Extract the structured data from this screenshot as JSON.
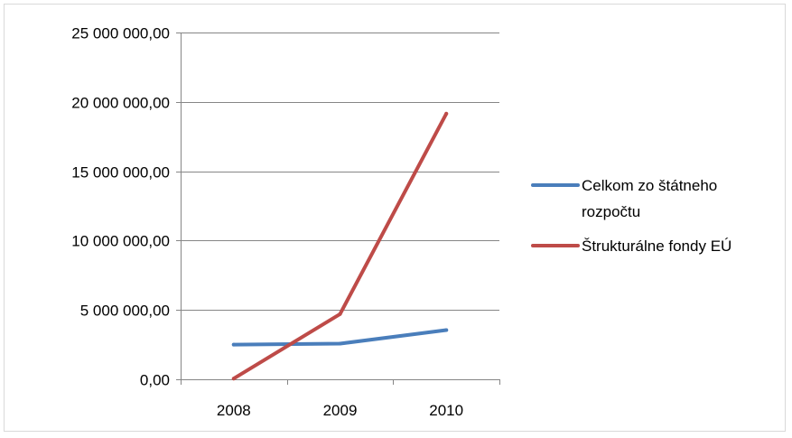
{
  "chart_data": {
    "type": "line",
    "categories": [
      "2008",
      "2009",
      "2010"
    ],
    "series": [
      {
        "name": "Celkom zo štátneho rozpočtu",
        "name_lines": [
          "Celkom zo štátneho",
          "rozpočtu"
        ],
        "color": "#4a7ebb",
        "values": [
          2500000,
          2570000,
          3550000
        ]
      },
      {
        "name": "Štrukturálne fondy EÚ",
        "name_lines": [
          "Štrukturálne fondy EÚ"
        ],
        "color": "#be4b48",
        "values": [
          50000,
          4700000,
          19150000
        ]
      }
    ],
    "y_ticks": [
      {
        "value": 0,
        "label": "0,00"
      },
      {
        "value": 5000000,
        "label": "5 000 000,00"
      },
      {
        "value": 10000000,
        "label": "10 000 000,00"
      },
      {
        "value": 15000000,
        "label": "15 000 000,00"
      },
      {
        "value": 20000000,
        "label": "20 000 000,00"
      },
      {
        "value": 25000000,
        "label": "25 000 000,00"
      }
    ],
    "ylim": [
      0,
      25000000
    ],
    "grid": true,
    "legend_position": "right"
  }
}
